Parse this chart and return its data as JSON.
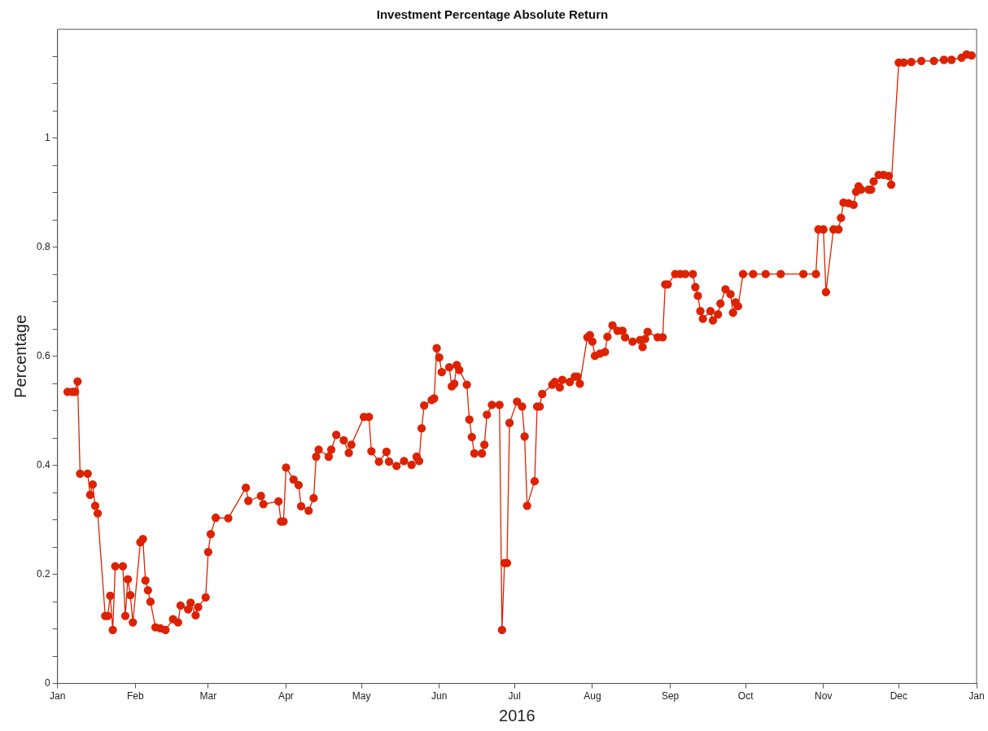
{
  "chart_data": {
    "type": "line",
    "title": "Investment Percentage Absolute Return",
    "xlabel": "2016",
    "ylabel": "Percentage",
    "xlim": [
      "2016-01-01",
      "2017-01-01"
    ],
    "xticks": [
      {
        "value": "2016-01-01",
        "label": "Jan"
      },
      {
        "value": "2016-02-01",
        "label": "Feb"
      },
      {
        "value": "2016-03-01",
        "label": "Mar"
      },
      {
        "value": "2016-04-01",
        "label": "Apr"
      },
      {
        "value": "2016-05-01",
        "label": "May"
      },
      {
        "value": "2016-06-01",
        "label": "Jun"
      },
      {
        "value": "2016-07-01",
        "label": "Jul"
      },
      {
        "value": "2016-08-01",
        "label": "Aug"
      },
      {
        "value": "2016-09-01",
        "label": "Sep"
      },
      {
        "value": "2016-10-01",
        "label": "Oct"
      },
      {
        "value": "2016-11-01",
        "label": "Nov"
      },
      {
        "value": "2016-12-01",
        "label": "Dec"
      },
      {
        "value": "2017-01-01",
        "label": "Jan"
      }
    ],
    "ylim": [
      0,
      1.2
    ],
    "yticks": [
      0,
      {
        "value": 0.05,
        "label": null
      },
      {
        "value": 0.1,
        "label": null
      },
      {
        "value": 0.15,
        "label": null
      },
      0.2,
      {
        "value": 0.25,
        "label": null
      },
      {
        "value": 0.3,
        "label": null
      },
      {
        "value": 0.35,
        "label": null
      },
      0.4,
      {
        "value": 0.45,
        "label": null
      },
      {
        "value": 0.5,
        "label": null
      },
      {
        "value": 0.55,
        "label": null
      },
      0.6,
      {
        "value": 0.65,
        "label": null
      },
      {
        "value": 0.7,
        "label": null
      },
      {
        "value": 0.75,
        "label": null
      },
      0.8,
      {
        "value": 0.85,
        "label": null
      },
      {
        "value": 0.9,
        "label": null
      },
      {
        "value": 0.95,
        "label": null
      },
      1,
      {
        "value": 1.05,
        "label": null
      },
      {
        "value": 1.1,
        "label": null
      },
      {
        "value": 1.15,
        "label": null
      }
    ],
    "grid": false,
    "legend": false,
    "marker": "circle",
    "line_style": "solid",
    "x": [
      "2016-01-05",
      "2016-01-07",
      "2016-01-08",
      "2016-01-09",
      "2016-01-10",
      "2016-01-13",
      "2016-01-14",
      "2016-01-15",
      "2016-01-16",
      "2016-01-17",
      "2016-01-20",
      "2016-01-21",
      "2016-01-22",
      "2016-01-23",
      "2016-01-24",
      "2016-01-27",
      "2016-01-28",
      "2016-01-29",
      "2016-01-30",
      "2016-01-31",
      "2016-02-03",
      "2016-02-04",
      "2016-02-05",
      "2016-02-06",
      "2016-02-07",
      "2016-02-09",
      "2016-02-11",
      "2016-02-13",
      "2016-02-16",
      "2016-02-18",
      "2016-02-19",
      "2016-02-22",
      "2016-02-23",
      "2016-02-25",
      "2016-02-26",
      "2016-02-29",
      "2016-03-01",
      "2016-03-02",
      "2016-03-04",
      "2016-03-09",
      "2016-03-16",
      "2016-03-17",
      "2016-03-22",
      "2016-03-23",
      "2016-03-29",
      "2016-03-30",
      "2016-03-31",
      "2016-04-01",
      "2016-04-04",
      "2016-04-06",
      "2016-04-07",
      "2016-04-10",
      "2016-04-12",
      "2016-04-13",
      "2016-04-14",
      "2016-04-18",
      "2016-04-19",
      "2016-04-21",
      "2016-04-24",
      "2016-04-26",
      "2016-04-27",
      "2016-05-02",
      "2016-05-04",
      "2016-05-05",
      "2016-05-08",
      "2016-05-11",
      "2016-05-12",
      "2016-05-15",
      "2016-05-18",
      "2016-05-21",
      "2016-05-23",
      "2016-05-24",
      "2016-05-25",
      "2016-05-26",
      "2016-05-29",
      "2016-05-30",
      "2016-05-31",
      "2016-06-01",
      "2016-06-02",
      "2016-06-05",
      "2016-06-06",
      "2016-06-07",
      "2016-06-08",
      "2016-06-09",
      "2016-06-12",
      "2016-06-13",
      "2016-06-14",
      "2016-06-15",
      "2016-06-18",
      "2016-06-19",
      "2016-06-20",
      "2016-06-22",
      "2016-06-25",
      "2016-06-26",
      "2016-06-27",
      "2016-06-28",
      "2016-06-29",
      "2016-07-02",
      "2016-07-04",
      "2016-07-05",
      "2016-07-06",
      "2016-07-09",
      "2016-07-10",
      "2016-07-11",
      "2016-07-12",
      "2016-07-16",
      "2016-07-17",
      "2016-07-19",
      "2016-07-20",
      "2016-07-23",
      "2016-07-25",
      "2016-07-26",
      "2016-07-27",
      "2016-07-30",
      "2016-07-31",
      "2016-08-01",
      "2016-08-02",
      "2016-08-04",
      "2016-08-06",
      "2016-08-07",
      "2016-08-09",
      "2016-08-11",
      "2016-08-13",
      "2016-08-14",
      "2016-08-17",
      "2016-08-20",
      "2016-08-21",
      "2016-08-22",
      "2016-08-23",
      "2016-08-27",
      "2016-08-29",
      "2016-08-30",
      "2016-08-31",
      "2016-09-03",
      "2016-09-05",
      "2016-09-07",
      "2016-09-10",
      "2016-09-11",
      "2016-09-12",
      "2016-09-13",
      "2016-09-14",
      "2016-09-17",
      "2016-09-18",
      "2016-09-20",
      "2016-09-21",
      "2016-09-23",
      "2016-09-25",
      "2016-09-26",
      "2016-09-27",
      "2016-09-28",
      "2016-09-30",
      "2016-10-04",
      "2016-10-09",
      "2016-10-15",
      "2016-10-24",
      "2016-10-29",
      "2016-10-30",
      "2016-11-01",
      "2016-11-02",
      "2016-11-05",
      "2016-11-07",
      "2016-11-08",
      "2016-11-09",
      "2016-11-11",
      "2016-11-13",
      "2016-11-14",
      "2016-11-15",
      "2016-11-16",
      "2016-11-19",
      "2016-11-20",
      "2016-11-21",
      "2016-11-23",
      "2016-11-25",
      "2016-11-27",
      "2016-11-28",
      "2016-12-01",
      "2016-12-03",
      "2016-12-06",
      "2016-12-10",
      "2016-12-15",
      "2016-12-19",
      "2016-12-22",
      "2016-12-26",
      "2016-12-28",
      "2016-12-30"
    ],
    "series": [
      {
        "color": "#dd2200",
        "values": [
          0.535,
          0.535,
          0.535,
          0.554,
          0.385,
          0.385,
          0.346,
          0.365,
          0.326,
          0.312,
          0.124,
          0.124,
          0.161,
          0.098,
          0.215,
          0.215,
          0.124,
          0.191,
          0.162,
          0.112,
          0.259,
          0.265,
          0.189,
          0.171,
          0.15,
          0.103,
          0.101,
          0.098,
          0.118,
          0.112,
          0.143,
          0.136,
          0.148,
          0.125,
          0.14,
          0.158,
          0.241,
          0.274,
          0.304,
          0.303,
          0.359,
          0.335,
          0.344,
          0.329,
          0.334,
          0.297,
          0.297,
          0.396,
          0.374,
          0.364,
          0.325,
          0.317,
          0.34,
          0.416,
          0.429,
          0.416,
          0.429,
          0.456,
          0.446,
          0.423,
          0.438,
          0.489,
          0.489,
          0.426,
          0.407,
          0.425,
          0.407,
          0.399,
          0.408,
          0.401,
          0.416,
          0.408,
          0.468,
          0.51,
          0.52,
          0.523,
          0.615,
          0.598,
          0.571,
          0.58,
          0.545,
          0.55,
          0.584,
          0.575,
          0.548,
          0.484,
          0.452,
          0.422,
          0.422,
          0.438,
          0.493,
          0.511,
          0.511,
          0.098,
          0.221,
          0.221,
          0.478,
          0.517,
          0.508,
          0.453,
          0.326,
          0.371,
          0.508,
          0.508,
          0.531,
          0.548,
          0.553,
          0.543,
          0.557,
          0.553,
          0.563,
          0.563,
          0.55,
          0.635,
          0.639,
          0.627,
          0.601,
          0.605,
          0.608,
          0.636,
          0.657,
          0.647,
          0.647,
          0.635,
          0.627,
          0.63,
          0.617,
          0.632,
          0.645,
          0.635,
          0.635,
          0.732,
          0.732,
          0.751,
          0.751,
          0.751,
          0.751,
          0.727,
          0.711,
          0.683,
          0.669,
          0.683,
          0.666,
          0.677,
          0.697,
          0.723,
          0.714,
          0.68,
          0.699,
          0.692,
          0.751,
          0.751,
          0.751,
          0.751,
          0.751,
          0.751,
          0.833,
          0.833,
          0.718,
          0.833,
          0.833,
          0.854,
          0.882,
          0.881,
          0.878,
          0.902,
          0.912,
          0.906,
          0.906,
          0.906,
          0.921,
          0.933,
          0.933,
          0.931,
          0.915,
          1.139,
          1.139,
          1.14,
          1.142,
          1.142,
          1.144,
          1.144,
          1.148,
          1.154,
          1.152
        ]
      }
    ]
  }
}
